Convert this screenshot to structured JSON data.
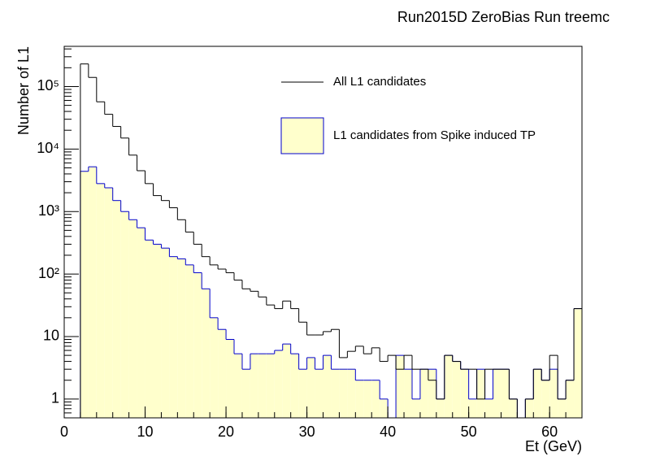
{
  "chart_data": {
    "type": "histogram",
    "title": "Run2015D ZeroBias Run treemc",
    "xlabel": "Et (GeV)",
    "ylabel": "Number of L1",
    "bins": [
      0,
      1,
      2,
      3,
      4,
      5,
      6,
      7,
      8,
      9,
      10,
      11,
      12,
      13,
      14,
      15,
      16,
      17,
      18,
      19,
      20,
      21,
      22,
      23,
      24,
      25,
      26,
      27,
      28,
      29,
      30,
      31,
      32,
      33,
      34,
      35,
      36,
      37,
      38,
      39,
      40,
      41,
      42,
      43,
      44,
      45,
      46,
      47,
      48,
      49,
      50,
      51,
      52,
      53,
      54,
      55,
      56,
      57,
      58,
      59,
      60,
      61,
      62,
      63,
      64
    ],
    "series": [
      {
        "name": "All L1 candidates",
        "color": "#000000",
        "fill": "none",
        "values": [
          0,
          0,
          230000,
          140000,
          57000,
          36000,
          23000,
          15000,
          8000,
          4500,
          2800,
          1800,
          1500,
          1150,
          740,
          470,
          300,
          190,
          140,
          120,
          105,
          80,
          58,
          53,
          43,
          32,
          28,
          37,
          28,
          17,
          10.6,
          10.6,
          12,
          13,
          4.6,
          5.8,
          7,
          5.3,
          6.6,
          4,
          5,
          3,
          5,
          3,
          3,
          2,
          1,
          5,
          4,
          3,
          3,
          1,
          3,
          3,
          3,
          1,
          0,
          1,
          3,
          2,
          5,
          1,
          2,
          28
        ]
      },
      {
        "name": "L1 candidates from Spike induced TP",
        "color": "#0000cc",
        "fill": "#ffffcc",
        "values": [
          0,
          0,
          4400,
          5200,
          2800,
          2400,
          1500,
          1000,
          740,
          550,
          350,
          300,
          260,
          190,
          175,
          140,
          105,
          58,
          20,
          13,
          9,
          5.3,
          3,
          5.3,
          5.3,
          5.3,
          6,
          7.6,
          5.3,
          3,
          4.6,
          3,
          5,
          3,
          3,
          3,
          2,
          2,
          2,
          1,
          0,
          5,
          3,
          1,
          3,
          3,
          1,
          5,
          4,
          3,
          1,
          3,
          1,
          3,
          3,
          1,
          0,
          1,
          3,
          2,
          3,
          1,
          2,
          28
        ]
      }
    ],
    "xlim": [
      0,
      64
    ],
    "xticks": [
      0,
      10,
      20,
      30,
      40,
      50,
      60
    ],
    "ylim": [
      0.5,
      440000
    ],
    "log_y": true,
    "yticks": [
      1,
      10,
      {
        "value": 100,
        "label": "10²"
      },
      {
        "value": 1000,
        "label": "10³"
      },
      {
        "value": 10000,
        "label": "10⁴"
      },
      {
        "value": 100000,
        "label": "10⁵"
      }
    ],
    "legend": "upper-right"
  }
}
